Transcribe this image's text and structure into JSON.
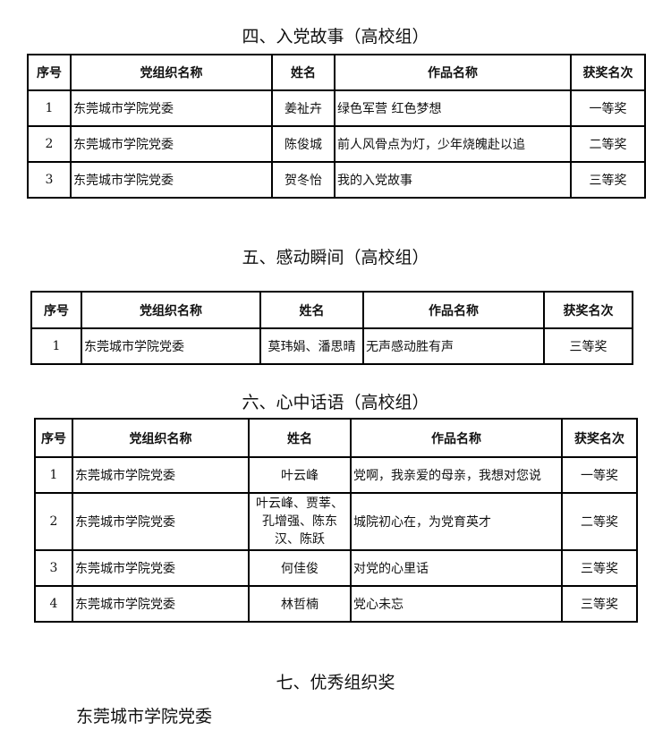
{
  "headers": [
    "序号",
    "党组织名称",
    "姓名",
    "作品名称",
    "获奖名次"
  ],
  "sections": [
    {
      "title": "四、入党故事（高校组）",
      "rows": [
        [
          "1",
          "东莞城市学院党委",
          "姜祉卉",
          "绿色军营 红色梦想",
          "一等奖"
        ],
        [
          "2",
          "东莞城市学院党委",
          "陈俊城",
          "前人风骨点为灯，少年烧魄赴以追",
          "二等奖"
        ],
        [
          "3",
          "东莞城市学院党委",
          "贺冬怡",
          "我的入党故事",
          "三等奖"
        ]
      ]
    },
    {
      "title": "五、感动瞬间（高校组）",
      "rows": [
        [
          "1",
          "东莞城市学院党委",
          "莫玮娟、潘思晴",
          "无声感动胜有声",
          "三等奖"
        ]
      ]
    },
    {
      "title": "六、心中话语（高校组）",
      "rows": [
        [
          "1",
          "东莞城市学院党委",
          "叶云峰",
          "党啊，我亲爱的母亲，我想对您说",
          "一等奖"
        ],
        [
          "2",
          "东莞城市学院党委",
          "叶云峰、贾莘、孔增强、陈东汉、陈跃",
          "城院初心在，为党育英才",
          "二等奖"
        ],
        [
          "3",
          "东莞城市学院党委",
          "何佳俊",
          "对党的心里话",
          "三等奖"
        ],
        [
          "4",
          "东莞城市学院党委",
          "林哲楠",
          "党心未忘",
          "三等奖"
        ]
      ]
    }
  ],
  "award_section": {
    "title": "七、优秀组织奖",
    "winner": "东莞城市学院党委"
  }
}
